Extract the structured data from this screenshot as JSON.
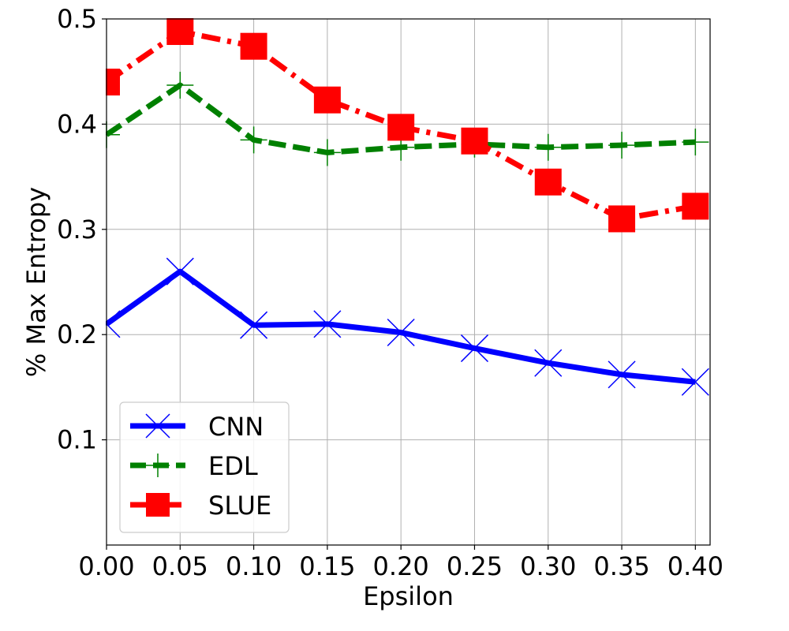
{
  "chart_data": {
    "type": "line",
    "title": "",
    "xlabel": "Epsilon",
    "ylabel": "% Max Entropy",
    "x": [
      0.0,
      0.05,
      0.1,
      0.15,
      0.2,
      0.25,
      0.3,
      0.35,
      0.4
    ],
    "x_tick_labels": [
      "0.00",
      "0.05",
      "0.10",
      "0.15",
      "0.20",
      "0.25",
      "0.30",
      "0.35",
      "0.40"
    ],
    "y_tick_values": [
      0.1,
      0.2,
      0.3,
      0.4,
      0.5
    ],
    "y_tick_labels": [
      "0.1",
      "0.2",
      "0.3",
      "0.4",
      "0.5"
    ],
    "xlim": [
      0.0,
      0.41
    ],
    "ylim": [
      0.0,
      0.5
    ],
    "grid": true,
    "legend_position": "bottom-left",
    "series": [
      {
        "name": "CNN",
        "values": [
          0.21,
          0.26,
          0.209,
          0.21,
          0.202,
          0.187,
          0.173,
          0.162,
          0.155
        ],
        "color": "#0000ff",
        "line_style": "solid",
        "marker": "x"
      },
      {
        "name": "EDL",
        "values": [
          0.39,
          0.437,
          0.385,
          0.373,
          0.378,
          0.381,
          0.378,
          0.38,
          0.383
        ],
        "color": "#008000",
        "line_style": "dashed",
        "marker": "plus"
      },
      {
        "name": "SLUE",
        "values": [
          0.44,
          0.488,
          0.474,
          0.423,
          0.397,
          0.384,
          0.345,
          0.31,
          0.322
        ],
        "color": "#ff0000",
        "line_style": "dashdot",
        "marker": "square"
      }
    ]
  }
}
